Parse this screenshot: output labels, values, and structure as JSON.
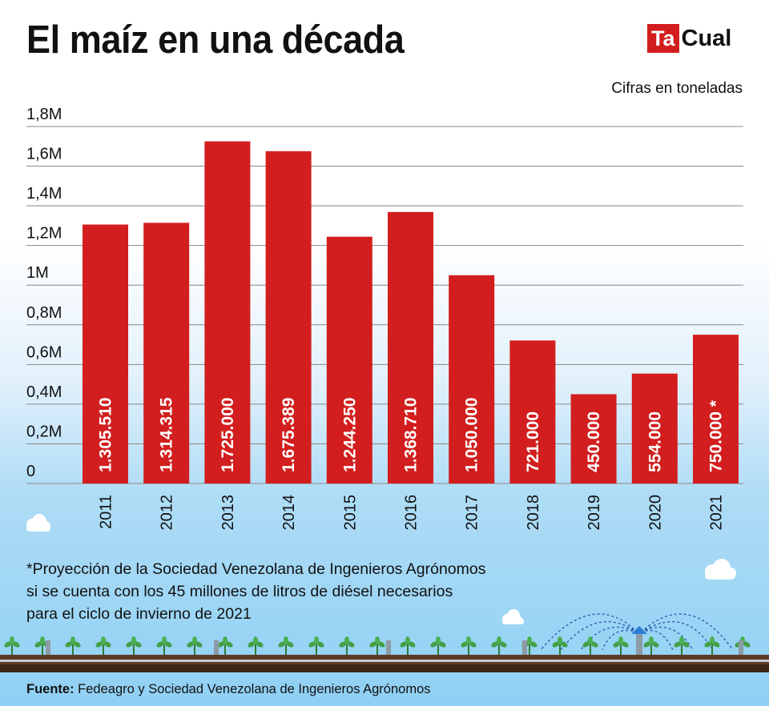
{
  "title": "El maíz en una década",
  "logo": {
    "part1": "Ta",
    "part2": "Cual"
  },
  "units": "Cifras en toneladas",
  "footnote": {
    "line1": "*Proyección de la Sociedad Venezolana de Ingenieros Agrónomos",
    "line2": "si se cuenta con los 45 millones de litros de diésel necesarios",
    "line3": "para el ciclo de invierno de 2021"
  },
  "source": {
    "label": "Fuente:",
    "text": " Fedeagro y Sociedad Venezolana de Ingenieros Agrónomos"
  },
  "colors": {
    "bar": "#d21e1e",
    "grid": "#888888",
    "text": "#111111",
    "brand": "#d21e1e"
  },
  "chart_data": {
    "type": "bar",
    "categories": [
      "2011",
      "2012",
      "2013",
      "2014",
      "2015",
      "2016",
      "2017",
      "2018",
      "2019",
      "2020",
      "2021"
    ],
    "values": [
      1305510,
      1314315,
      1725000,
      1675389,
      1244250,
      1368710,
      1050000,
      721000,
      450000,
      554000,
      750000
    ],
    "value_labels": [
      "1.305.510",
      "1.314.315",
      "1.725.000",
      "1.675.389",
      "1.244.250",
      "1.368.710",
      "1.050.000",
      "721.000",
      "450.000",
      "554.000",
      "750.000 *"
    ],
    "ylim": [
      0,
      1800000
    ],
    "yticks": [
      0,
      200000,
      400000,
      600000,
      800000,
      1000000,
      1200000,
      1400000,
      1600000,
      1800000
    ],
    "ytick_labels": [
      "0",
      "0,2M",
      "0,4M",
      "0,6M",
      "0,8M",
      "1M",
      "1,2M",
      "1,4M",
      "1,6M",
      "1,8M"
    ],
    "grid": true,
    "xlabel": "",
    "ylabel": ""
  }
}
